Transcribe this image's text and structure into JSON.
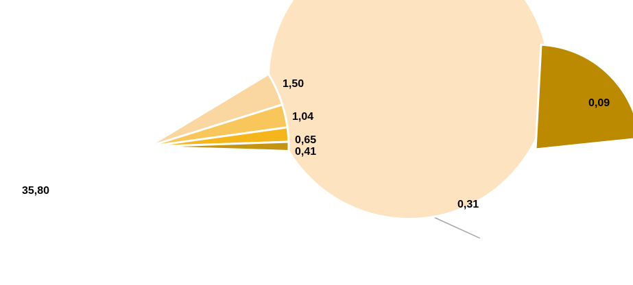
{
  "chart_data": {
    "type": "pie",
    "subtype": "bar-of-pie",
    "main": {
      "slices": [
        {
          "label": "35,80",
          "value": 35.8,
          "color": "#FDE3C0"
        },
        {
          "label": "1,50",
          "value": 1.5,
          "color": "#FAD6A0"
        },
        {
          "label": "1,04",
          "value": 1.04,
          "color": "#F8C65A"
        },
        {
          "label": "0,65",
          "value": 0.65,
          "color": "#F4B61B"
        },
        {
          "label": "0,41",
          "value": 0.41,
          "color": "#C49413"
        }
      ]
    },
    "secondary": {
      "breakdown_of": "0,41",
      "slices": [
        {
          "label": "0,31",
          "value": 0.31,
          "color": "#D9A300"
        },
        {
          "label": "0,09",
          "value": 0.09,
          "color": "#BC8A00"
        }
      ]
    },
    "legend": "none",
    "grid": false
  }
}
